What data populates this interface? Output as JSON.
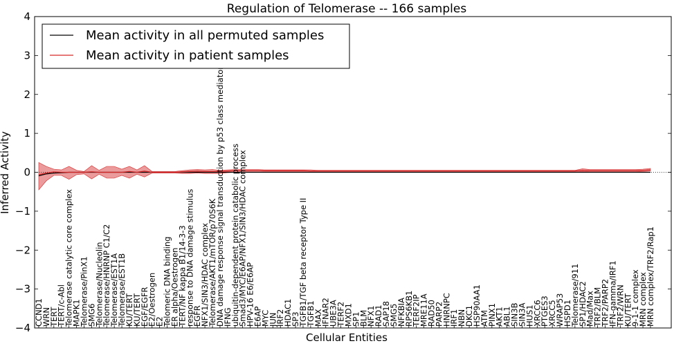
{
  "chart_data": {
    "type": "line",
    "title": "Regulation of Telomerase -- 166 samples",
    "xlabel": "Cellular Entities",
    "ylabel": "Inferred Activity",
    "ylim": [
      -4,
      4
    ],
    "yticks": [
      -4,
      -3,
      -2,
      -1,
      0,
      1,
      2,
      3,
      4
    ],
    "ytick_labels": [
      "−4",
      "−3",
      "−2",
      "−1",
      "0",
      "1",
      "2",
      "3",
      "4"
    ],
    "grid": false,
    "legend_position": "top-left",
    "legend": [
      {
        "label": "Mean activity in all permuted samples",
        "color": "#000000"
      },
      {
        "label": "Mean activity in patient samples",
        "color": "#d62728"
      }
    ],
    "categories": [
      "CCND1",
      "WRN",
      "TERT",
      "TERT/c-Abl",
      "Telomerase catalytic core complex",
      "MAPK1",
      "Telomerase/PinX1",
      "SMG6",
      "Telomerase/Nucleolin",
      "Telomerase/HNRNP C1/C2",
      "Telomerase/EST1A",
      "Telomerase/EST1B",
      "KU/TERT",
      "KU/TERT",
      "EGF/EGFR",
      "E2/Oestrogen",
      "E2",
      "Telomeric DNA binding",
      "ER alpha/Oestrogen",
      "TERT/NF kappa B1/14-3-3",
      "response to DNA damage stimulus",
      "EGFR",
      "NFX1/SIN3/HDAC complex",
      "Telomerase/AKT1/mTOR/p70S6K",
      "DNA damage response signal transduction by p53 class mediator",
      "IFNG",
      "ubiquitin-dependent protein catabolic process",
      "Smad3/MYC/E6AP/NFX1/SIN3/HDAC complex",
      "HPV-16 E6/E6AP",
      "E6AP",
      "MYC",
      "JUN",
      "IRF2",
      "HDAC1",
      "SP3",
      "TGFB1/TGF beta receptor Type II",
      "TGFB1",
      "MAX",
      "IFNAR2",
      "UBE3A",
      "TERF2",
      "MXD1",
      "SP1",
      "BLM",
      "NFX1",
      "RAD1",
      "SAP18",
      "SMG5",
      "NFKBIA",
      "RPS6KB1",
      "TERF2IP",
      "MRE11A",
      "RAD50",
      "PARP2",
      "HNRNPC",
      "IRF1",
      "NBN",
      "DKC1",
      "HSP90AA1",
      "ATM",
      "PINX1",
      "AKT1",
      "ABL1",
      "SIN3B",
      "SIN3A",
      "HUS1",
      "XRCC6",
      "PTGES3",
      "XRCC5",
      "WRAP53",
      "HSPD1",
      "Telomerase/911",
      "SP1/HDAC2",
      "Mad/Max",
      "TRF2/BLM",
      "TRF2/PARP2",
      "IFN-gamma/IRF1",
      "TRF2/WRN",
      "KU/TERT",
      "9-1-1 complex",
      "MRN complex",
      "MRN complex/TRF2/Rap1"
    ],
    "series": [
      {
        "name": "Mean activity in all permuted samples",
        "color": "#000000",
        "values": [
          -0.09,
          -0.04,
          -0.02,
          -0.01,
          0,
          0,
          0,
          0,
          0,
          0,
          0,
          0,
          0,
          0,
          0,
          0,
          0,
          0,
          0,
          0,
          0,
          0,
          0,
          0,
          0,
          0,
          0,
          0,
          0,
          0,
          0,
          0,
          0,
          0,
          0,
          0,
          0,
          0,
          0,
          0,
          0,
          0,
          0,
          0,
          0,
          0,
          0,
          0,
          0,
          0,
          0,
          0,
          0,
          0,
          0,
          0,
          0,
          0,
          0,
          0,
          0,
          0,
          0,
          0,
          0,
          0,
          0,
          0,
          0,
          0,
          0,
          0,
          0,
          0,
          0,
          0,
          0,
          0,
          0,
          0,
          0,
          0
        ]
      },
      {
        "name": "Mean activity in patient samples",
        "color": "#d62728",
        "values": [
          -0.06,
          -0.02,
          0.01,
          0,
          0,
          0,
          0,
          0.01,
          0,
          0,
          0,
          0,
          0.02,
          0,
          0.03,
          0,
          0,
          0,
          0,
          0.01,
          0.02,
          0.03,
          0.02,
          0.02,
          0.02,
          0.03,
          0.04,
          0.04,
          0.04,
          0.04,
          0.04,
          0.04,
          0.04,
          0.04,
          0.04,
          0.04,
          0.03,
          0.03,
          0.03,
          0.03,
          0.03,
          0.03,
          0.03,
          0.03,
          0.03,
          0.03,
          0.03,
          0.03,
          0.03,
          0.03,
          0.03,
          0.03,
          0.03,
          0.03,
          0.03,
          0.03,
          0.03,
          0.03,
          0.03,
          0.03,
          0.03,
          0.03,
          0.03,
          0.03,
          0.03,
          0.03,
          0.03,
          0.03,
          0.03,
          0.03,
          0.03,
          0.03,
          0.05,
          0.04,
          0.04,
          0.04,
          0.04,
          0.04,
          0.04,
          0.04,
          0.05,
          0.06
        ]
      }
    ],
    "band_upper": [
      0.25,
      0.15,
      0.08,
      0.06,
      0.15,
      0.05,
      0.02,
      0.17,
      0.05,
      0.15,
      0.15,
      0.08,
      0.15,
      0.06,
      0.17,
      0.02,
      0.02,
      0.02,
      0.02,
      0.04,
      0.06,
      0.07,
      0.06,
      0.07,
      0.05,
      0.06,
      0.07,
      0.07,
      0.07,
      0.07,
      0.06,
      0.06,
      0.06,
      0.06,
      0.06,
      0.06,
      0.06,
      0.05,
      0.05,
      0.05,
      0.05,
      0.05,
      0.05,
      0.05,
      0.05,
      0.05,
      0.05,
      0.05,
      0.05,
      0.05,
      0.05,
      0.05,
      0.05,
      0.05,
      0.05,
      0.05,
      0.05,
      0.05,
      0.05,
      0.05,
      0.05,
      0.05,
      0.05,
      0.05,
      0.05,
      0.05,
      0.05,
      0.05,
      0.05,
      0.05,
      0.05,
      0.05,
      0.09,
      0.07,
      0.07,
      0.07,
      0.07,
      0.07,
      0.07,
      0.07,
      0.08,
      0.1
    ],
    "band_lower": [
      -0.45,
      -0.22,
      -0.08,
      -0.08,
      -0.18,
      -0.06,
      -0.04,
      -0.17,
      -0.05,
      -0.15,
      -0.15,
      -0.08,
      -0.15,
      -0.05,
      -0.12,
      -0.02,
      -0.02,
      -0.02,
      -0.02,
      -0.03,
      -0.03,
      -0.02,
      -0.03,
      -0.03,
      -0.03,
      -0.01,
      0.0,
      0.0,
      0.0,
      0.0,
      0.01,
      0.01,
      0.01,
      0.01,
      0.01,
      0.01,
      0.0,
      0.0,
      0.0,
      0.0,
      0.0,
      0.0,
      0.0,
      0.0,
      0.0,
      0.0,
      0.0,
      0.0,
      0.0,
      0.0,
      0.0,
      0.0,
      0.0,
      0.0,
      0.0,
      0.0,
      0.0,
      0.0,
      0.0,
      0.0,
      0.0,
      0.0,
      0.0,
      0.0,
      0.0,
      0.0,
      0.0,
      0.0,
      0.0,
      0.0,
      0.0,
      0.0,
      0.02,
      0.01,
      0.01,
      0.01,
      0.01,
      0.01,
      0.01,
      0.01,
      0.02,
      0.03
    ]
  }
}
